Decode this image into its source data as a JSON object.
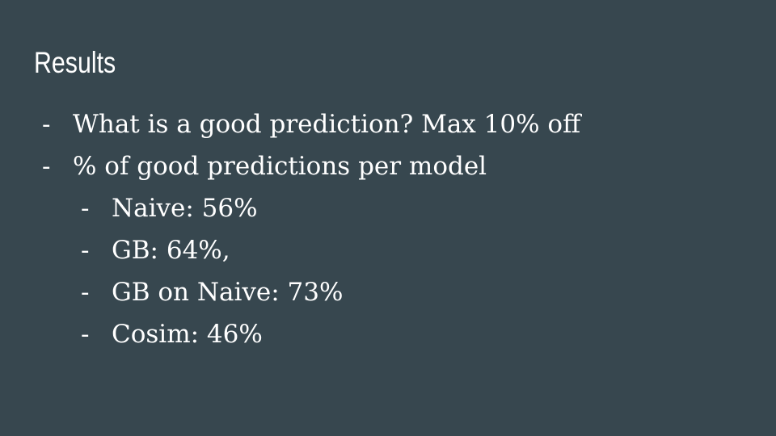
{
  "slide": {
    "title": "Results",
    "background_color": "#37474f",
    "text_color": "#ffffff",
    "bullet_marker": "-",
    "bullets": [
      {
        "level": 1,
        "text": "What is a good prediction? Max 10% off"
      },
      {
        "level": 1,
        "text": "% of good predictions per model"
      },
      {
        "level": 2,
        "text": "Naive: 56%"
      },
      {
        "level": 2,
        "text": "GB: 64%,"
      },
      {
        "level": 2,
        "text": "GB on Naive: 73%"
      },
      {
        "level": 2,
        "text": "Cosim: 46%"
      }
    ]
  }
}
